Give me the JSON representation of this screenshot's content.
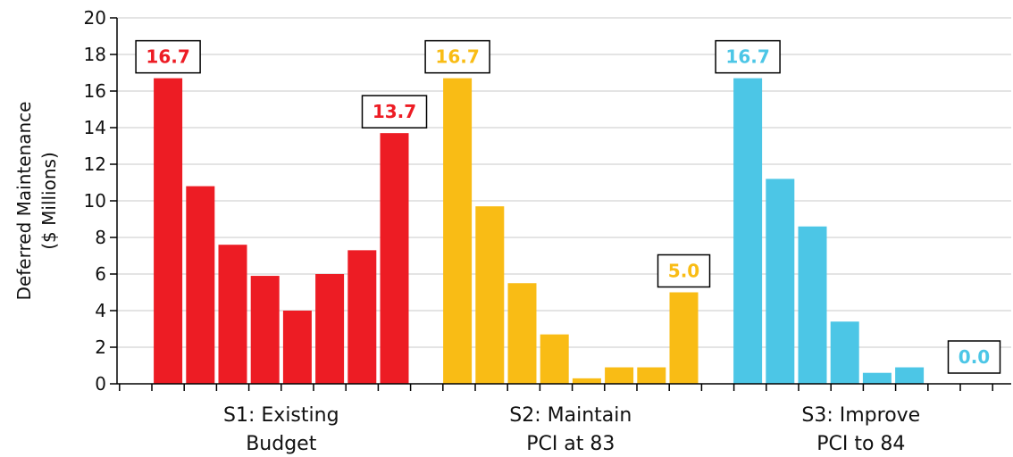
{
  "chart_data": {
    "type": "bar",
    "ylabel_lines": [
      "Deferred Maintenance",
      "($ Millions)"
    ],
    "ylim": [
      0,
      20
    ],
    "yticks": [
      "0",
      "2",
      "4",
      "6",
      "8",
      "10",
      "12",
      "14",
      "16",
      "18",
      "20"
    ],
    "grid": true,
    "groups": [
      {
        "label_lines": [
          "S1: Existing",
          "Budget"
        ],
        "color": "#ed1c24",
        "values": [
          16.7,
          10.8,
          7.6,
          5.9,
          4.0,
          6.0,
          7.3,
          13.7
        ],
        "callouts": [
          {
            "text": "16.7",
            "bar_index": 0
          },
          {
            "text": "13.7",
            "bar_index": 7
          }
        ]
      },
      {
        "label_lines": [
          "S2: Maintain",
          "PCI at 83"
        ],
        "color": "#f9bc15",
        "values": [
          16.7,
          9.7,
          5.5,
          2.7,
          0.3,
          0.9,
          0.9,
          5.0
        ],
        "callouts": [
          {
            "text": "16.7",
            "bar_index": 0
          },
          {
            "text": "5.0",
            "bar_index": 7
          }
        ]
      },
      {
        "label_lines": [
          "S3: Improve",
          "PCI to 84"
        ],
        "color": "#4cc6e6",
        "values": [
          16.7,
          11.2,
          8.6,
          3.4,
          0.6,
          0.9,
          0.0,
          0.0
        ],
        "callouts": [
          {
            "text": "16.7",
            "bar_index": 0
          },
          {
            "text": "0.0",
            "bar_index": 7
          }
        ]
      }
    ]
  }
}
